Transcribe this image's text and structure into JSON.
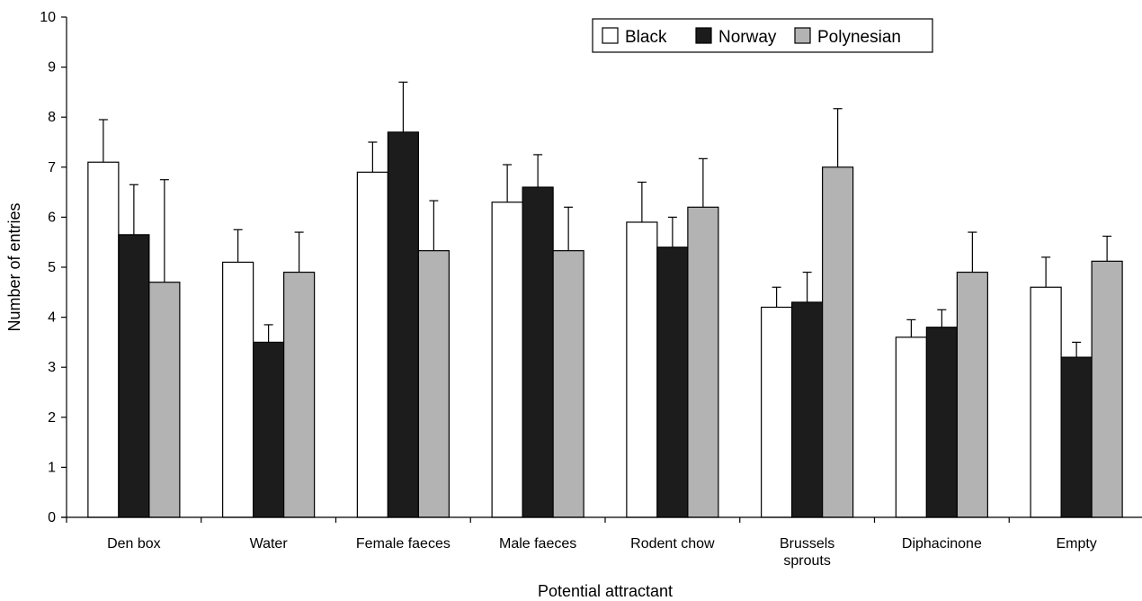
{
  "chart_data": {
    "type": "bar",
    "xlabel": "Potential attractant",
    "ylabel": "Number of entries",
    "ylim": [
      0,
      10
    ],
    "yticks": [
      "0",
      "1",
      "2",
      "3",
      "4",
      "5",
      "6",
      "7",
      "8",
      "9",
      "10"
    ],
    "categories": [
      [
        "Den box"
      ],
      [
        "Water"
      ],
      [
        "Female faeces"
      ],
      [
        "Male faeces"
      ],
      [
        "Rodent chow"
      ],
      [
        "Brussels",
        "sprouts"
      ],
      [
        "Diphacinone"
      ],
      [
        "Empty"
      ]
    ],
    "series": [
      {
        "name": "Black",
        "color": "#ffffff",
        "values": [
          7.1,
          5.1,
          6.9,
          6.3,
          5.9,
          4.2,
          3.6,
          4.6
        ],
        "error": [
          0.85,
          0.65,
          0.6,
          0.75,
          0.8,
          0.4,
          0.35,
          0.6
        ]
      },
      {
        "name": "Norway",
        "color": "#1c1c1c",
        "values": [
          5.65,
          3.5,
          7.7,
          6.6,
          5.4,
          4.3,
          3.8,
          3.2
        ],
        "error": [
          1.0,
          0.35,
          1.0,
          0.65,
          0.6,
          0.6,
          0.35,
          0.3
        ]
      },
      {
        "name": "Polynesian",
        "color": "#b3b3b3",
        "values": [
          4.7,
          4.9,
          5.33,
          5.33,
          6.2,
          7.0,
          4.9,
          5.12
        ],
        "error": [
          2.05,
          0.8,
          1.0,
          0.87,
          0.97,
          1.17,
          0.8,
          0.5
        ]
      }
    ],
    "legend": {
      "position": "top-right"
    },
    "grid": false
  }
}
